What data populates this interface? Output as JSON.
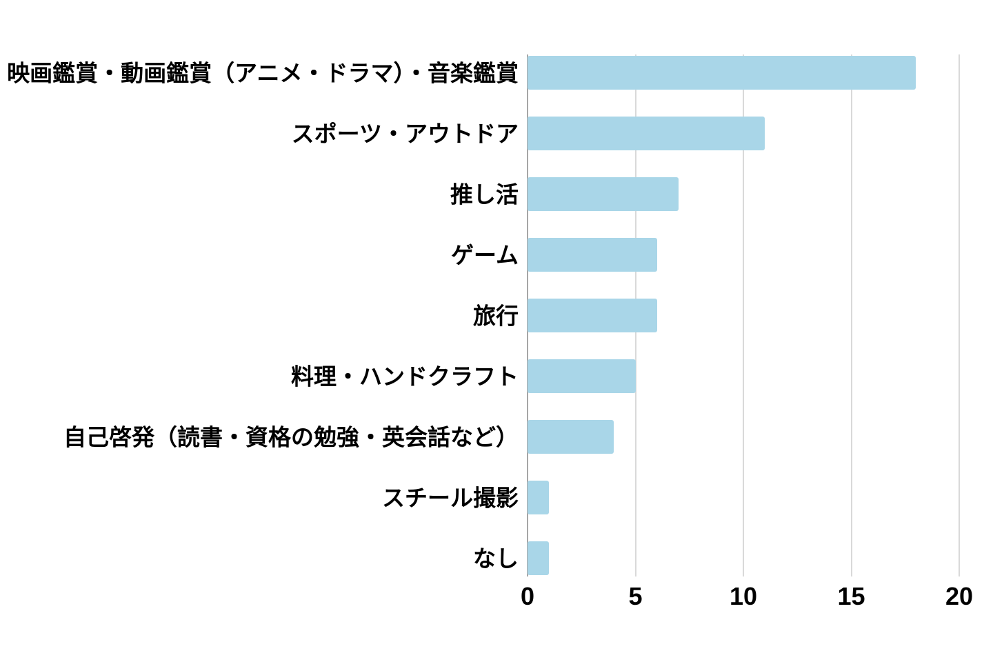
{
  "chart_data": {
    "type": "bar",
    "orientation": "horizontal",
    "title": "",
    "xlabel": "",
    "ylabel": "",
    "categories": [
      "映画鑑賞・動画鑑賞（アニメ・ドラマ）・音楽鑑賞",
      "スポーツ・アウトドア",
      "推し活",
      "ゲーム",
      "旅行",
      "料理・ハンドクラフト",
      "自己啓発（読書・資格の勉強・英会話など）",
      "スチール撮影",
      "なし"
    ],
    "values": [
      18,
      11,
      7,
      6,
      6,
      5,
      4,
      1,
      1
    ],
    "xlim": [
      0,
      20
    ],
    "x_ticks": [
      "0",
      "5",
      "10",
      "15",
      "20"
    ],
    "x_tick_values": [
      0,
      5,
      10,
      15,
      20
    ],
    "grid": true,
    "legend": false,
    "colors": {
      "bar": "#A9D6E8",
      "gridline": "#D9D9D9",
      "zero_line": "#A6A6A6",
      "text": "#000000",
      "background": "#FFFFFF"
    }
  }
}
